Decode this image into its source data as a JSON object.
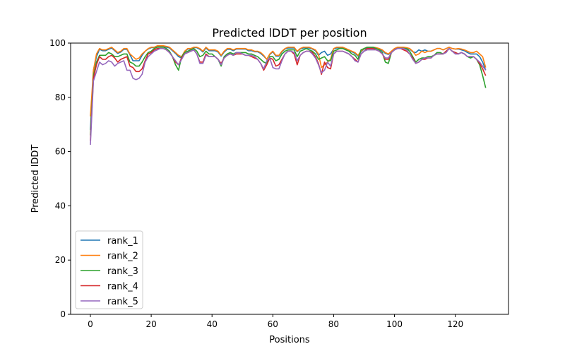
{
  "chart_data": {
    "type": "line",
    "title": "Predicted lDDT per position",
    "xlabel": "Positions",
    "ylabel": "Predicted lDDT",
    "xlim": [
      -6.5,
      137.5
    ],
    "ylim": [
      0,
      100
    ],
    "xticks": [
      0,
      20,
      40,
      60,
      80,
      100,
      120
    ],
    "yticks": [
      0,
      20,
      40,
      60,
      80,
      100
    ],
    "grid": false,
    "legend_position": "lower-left",
    "x_start": 0,
    "series": [
      {
        "name": "rank_1",
        "color": "#1f77b4",
        "values": [
          68,
          90,
          95,
          97.7,
          97.2,
          97.2,
          97.7,
          98.2,
          97.2,
          96.2,
          96.7,
          97.7,
          97.7,
          95.7,
          93.5,
          93.5,
          93.5,
          95.5,
          97,
          97.8,
          98.3,
          98.3,
          98.8,
          98.8,
          98.8,
          98.5,
          98.2,
          97.2,
          96.2,
          95,
          94.5,
          96.8,
          97.8,
          97.8,
          98.3,
          98.3,
          97.7,
          96.7,
          98.2,
          97.2,
          97.2,
          97.2,
          96.7,
          95.2,
          96.7,
          97.7,
          97.7,
          97.2,
          97.8,
          97.8,
          97.8,
          97.8,
          97.2,
          97.2,
          96.8,
          96.8,
          96.2,
          95.2,
          94,
          95.8,
          96.8,
          95.2,
          95.2,
          96.8,
          97.8,
          98.2,
          98.2,
          98.2,
          96.8,
          97.8,
          98.2,
          98.2,
          98.2,
          97.8,
          97.2,
          95.5,
          96.5,
          97,
          95.5,
          96,
          97.8,
          98.2,
          98.2,
          98.2,
          97.8,
          97.2,
          96.8,
          96.2,
          95.2,
          96.8,
          97.8,
          98.2,
          98.2,
          98.2,
          98,
          97.8,
          97.2,
          96.2,
          95.8,
          96.8,
          97.8,
          98.2,
          98.2,
          98.2,
          98,
          97.8,
          96.8,
          96.5,
          97.5,
          97,
          97.5,
          97,
          97,
          97.5,
          98,
          98,
          97.5,
          98,
          98.5,
          98,
          97.8,
          97.8,
          97.5,
          97.2,
          96.5,
          96,
          96,
          96,
          95,
          93,
          90
        ]
      },
      {
        "name": "rank_2",
        "color": "#ff7f0e",
        "values": [
          73,
          90,
          96,
          98,
          97.5,
          97.5,
          98,
          98.5,
          97.5,
          96.5,
          97,
          98,
          98,
          96,
          95,
          94,
          94.5,
          96,
          97,
          98,
          98.5,
          98.5,
          99,
          99,
          99,
          98.8,
          98.5,
          97.5,
          96.5,
          95.5,
          95,
          97,
          98,
          98,
          98.5,
          98.5,
          98,
          97,
          98.5,
          97.5,
          97.5,
          97.5,
          97,
          95.5,
          97,
          98,
          98,
          97.5,
          98,
          98,
          98,
          98,
          97.5,
          97.5,
          97,
          97,
          96.5,
          95.5,
          94,
          96,
          97,
          95.5,
          95.5,
          97,
          98,
          98.5,
          98.5,
          98.5,
          97,
          98,
          98.5,
          98.5,
          98.5,
          98,
          97.5,
          96,
          91,
          92,
          93,
          94,
          98,
          98.5,
          98.5,
          98.5,
          98,
          97.5,
          97,
          96.5,
          95.5,
          97,
          98,
          98.5,
          98.5,
          98.5,
          98.3,
          98,
          97.5,
          96.5,
          96,
          97,
          98,
          98.5,
          98.5,
          98.5,
          98.3,
          98,
          97,
          95.5,
          96,
          97,
          96.5,
          97,
          97,
          97.5,
          98,
          98,
          97.5,
          98,
          98.5,
          98,
          97.8,
          98,
          97.8,
          97.5,
          97,
          96.5,
          96.5,
          97,
          96,
          95,
          91
        ]
      },
      {
        "name": "rank_3",
        "color": "#2ca02c",
        "values": [
          66,
          88,
          93,
          95.5,
          95.5,
          95.5,
          96.5,
          96,
          95,
          95,
          95.5,
          96,
          96,
          93,
          92.5,
          91.5,
          91.5,
          93,
          95,
          96.5,
          97,
          98,
          98.5,
          98.5,
          98.5,
          98,
          97,
          95,
          92,
          90,
          95,
          96.5,
          97,
          97.5,
          98,
          97,
          95,
          95.5,
          97,
          96,
          96,
          95,
          94,
          91.5,
          95,
          96,
          96.5,
          96,
          96.5,
          96.5,
          96.5,
          96.5,
          96,
          96,
          95.5,
          95,
          94,
          93,
          92.5,
          95,
          95,
          93.5,
          94,
          96,
          97,
          97.5,
          97.5,
          97.5,
          95,
          97,
          97.5,
          98,
          97.5,
          97,
          96,
          94,
          94.5,
          95,
          93.5,
          93.5,
          97,
          97.5,
          98,
          98,
          97.5,
          97,
          96,
          95.5,
          94,
          97.5,
          98,
          98.5,
          98.5,
          98.5,
          98,
          97.5,
          96.5,
          93,
          92.5,
          96.5,
          97.5,
          98,
          98,
          98,
          98,
          97,
          95,
          93,
          94,
          94.5,
          94.5,
          95,
          95,
          95.5,
          96.5,
          96.5,
          96,
          97,
          98,
          97,
          96.5,
          96,
          96.5,
          96,
          95,
          94.5,
          95,
          94,
          92,
          88,
          83.5
        ]
      },
      {
        "name": "rank_4",
        "color": "#d62728",
        "values": [
          64,
          87,
          92,
          95,
          94,
          94,
          95,
          95.5,
          94.5,
          93,
          94,
          94.5,
          95,
          91.5,
          91,
          89.5,
          89.5,
          90.5,
          93.5,
          96,
          96.5,
          97.5,
          98,
          98,
          98,
          97.5,
          96.5,
          95,
          93,
          92,
          94.5,
          96,
          96.5,
          97,
          97.5,
          96,
          93,
          93,
          96,
          95,
          95,
          95,
          94,
          92.5,
          94.5,
          95.5,
          96,
          95.5,
          96,
          96,
          96,
          95.5,
          95.5,
          95,
          94.5,
          94,
          92.5,
          90,
          92,
          94.5,
          94,
          91.5,
          92,
          94,
          96,
          97,
          97,
          96,
          92,
          95.5,
          96.5,
          97,
          97,
          96.5,
          95,
          92.5,
          88.5,
          93,
          91,
          90.5,
          96,
          97,
          97,
          97,
          96.5,
          96,
          95,
          94,
          93,
          96,
          97,
          98,
          98,
          98,
          97.5,
          97,
          96,
          94,
          94,
          96.5,
          97.5,
          98,
          98,
          97.5,
          97,
          96,
          94.5,
          92.5,
          93,
          94,
          94,
          94.5,
          94.5,
          95.5,
          96,
          96,
          96,
          97,
          98,
          97,
          96.5,
          96,
          96.5,
          96,
          95,
          95,
          95,
          94,
          92.5,
          90.5,
          88
        ]
      },
      {
        "name": "rank_5",
        "color": "#9467bd",
        "values": [
          62.5,
          86,
          89.5,
          93,
          92,
          92.5,
          93.5,
          93,
          91.5,
          92.5,
          93,
          93.5,
          90,
          90,
          87,
          86.5,
          87,
          88.5,
          93,
          95,
          96,
          97,
          97.5,
          98,
          98,
          97.5,
          96.5,
          95,
          93.5,
          92,
          94,
          96,
          96.5,
          97,
          97.5,
          96,
          92.5,
          92.5,
          95.5,
          95,
          95,
          95,
          94,
          92,
          94.5,
          95.5,
          96,
          95.5,
          96.5,
          96.5,
          96,
          95.5,
          95.5,
          95.5,
          95,
          94,
          92.5,
          90.5,
          93.5,
          94.5,
          91,
          90.5,
          90.5,
          93.5,
          96,
          97,
          97,
          96.5,
          93.5,
          95.5,
          96.5,
          97,
          97,
          96,
          94.5,
          92,
          89,
          90,
          93,
          91.5,
          96,
          97,
          97,
          97,
          96.5,
          96,
          95,
          93.5,
          93,
          96,
          97,
          97.5,
          97.5,
          97.5,
          97.5,
          97,
          96,
          94.5,
          94.5,
          96.5,
          97.5,
          98,
          98,
          98,
          97.5,
          96,
          94,
          92.5,
          93,
          94,
          94.5,
          94.5,
          94.5,
          95.5,
          96,
          96,
          96,
          96.5,
          98,
          97,
          96,
          96,
          96.5,
          96,
          95,
          95,
          95,
          94,
          93,
          91.5,
          90
        ]
      }
    ]
  }
}
